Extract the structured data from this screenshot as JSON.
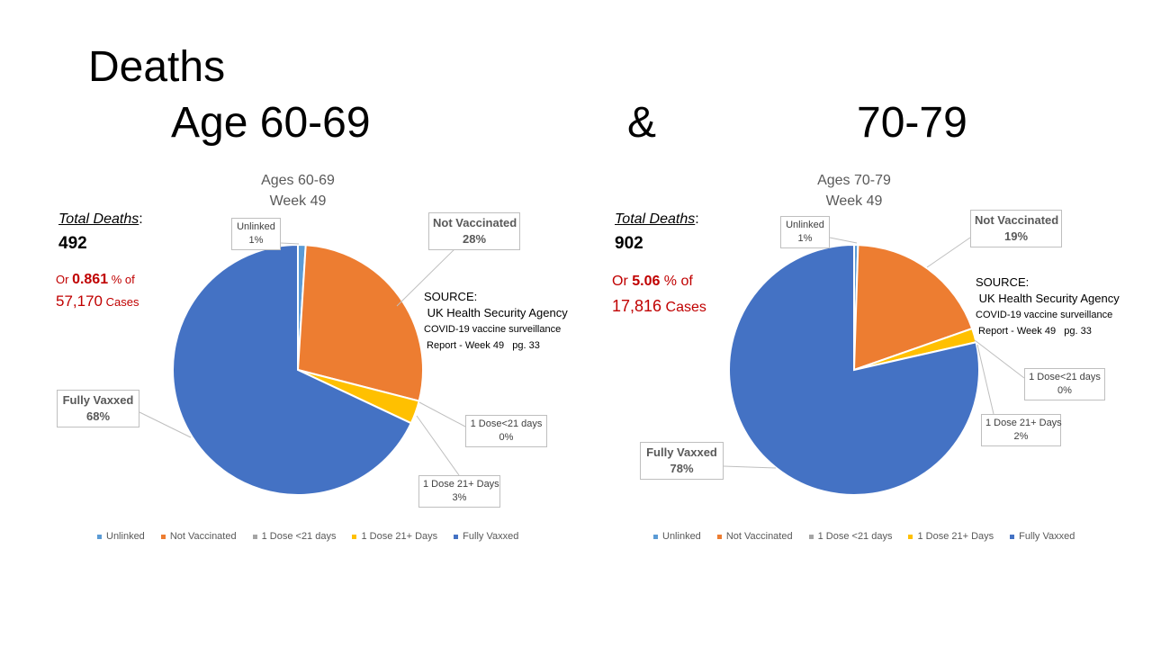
{
  "slide": {
    "title_line1": "Deaths",
    "title_age": "Age 60-69",
    "title_amp": "&",
    "title_age2": "70-79"
  },
  "colors": {
    "unlinked": "#5b9bd5",
    "not_vaccinated": "#ed7d31",
    "dose_lt21": "#a5a5a5",
    "dose_21plus": "#ffc000",
    "fully_vaxxed": "#4472c4",
    "accent_red": "#c00000"
  },
  "left": {
    "total_label": "Total Deaths",
    "total_colon": ":",
    "total_value": "492",
    "ratio_prefix": "Or ",
    "ratio_pct": "0.861",
    "ratio_suffix": " % of",
    "cases_value": "57,170",
    "cases_label": " Cases",
    "source_lines": [
      "SOURCE:",
      " UK Health Security Agency",
      "COVID-19 vaccine surveillance",
      " Report - Week 49   pg. 33"
    ]
  },
  "right": {
    "total_label": "Total Deaths",
    "total_colon": ":",
    "total_value": "902",
    "ratio_prefix": "Or ",
    "ratio_pct": "5.06",
    "ratio_suffix": " % of",
    "cases_value": "17,816",
    "cases_label": " Cases",
    "source_lines": [
      "SOURCE:",
      " UK Health Security Agency",
      "COVID-19 vaccine surveillance",
      " Report - Week 49   pg. 33"
    ]
  },
  "chart_data": [
    {
      "type": "pie",
      "title": [
        "Ages 60-69",
        "Week 49"
      ],
      "categories": [
        "Unlinked",
        "Not Vaccinated",
        "1 Dose <21 days",
        "1 Dose 21+ Days",
        "Fully Vaxxed"
      ],
      "values": [
        1,
        28,
        0,
        3,
        68
      ],
      "data_labels": [
        {
          "name": "Unlinked",
          "value": "1%"
        },
        {
          "name": "Not Vaccinated",
          "value": "28%"
        },
        {
          "name": "1 Dose<21 days",
          "value": "0%"
        },
        {
          "name": "1 Dose 21+ Days",
          "value": "3%"
        },
        {
          "name": "Fully Vaxxed",
          "value": "68%"
        }
      ],
      "legend": "bottom"
    },
    {
      "type": "pie",
      "title": [
        "Ages 70-79",
        "Week 49"
      ],
      "categories": [
        "Unlinked",
        "Not Vaccinated",
        "1 Dose <21 days",
        "1 Dose 21+ Days",
        "Fully Vaxxed"
      ],
      "values": [
        0.5,
        19,
        0,
        1.8,
        78
      ],
      "data_labels": [
        {
          "name": "Unlinked",
          "value": "1%"
        },
        {
          "name": "Not Vaccinated",
          "value": "19%"
        },
        {
          "name": "1 Dose<21 days",
          "value": "0%"
        },
        {
          "name": "1 Dose 21+ Days",
          "value": "2%"
        },
        {
          "name": "Fully Vaxxed",
          "value": "78%"
        }
      ],
      "legend": "bottom"
    }
  ]
}
